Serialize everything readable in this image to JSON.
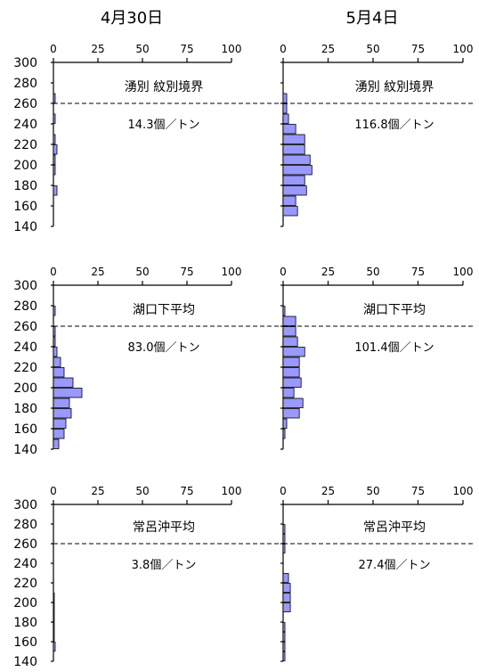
{
  "column_titles": [
    "4月30日",
    "5月4日"
  ],
  "chart_data": [
    {
      "type": "bar",
      "orientation": "horizontal",
      "date": "4月30日",
      "site": "湧別 紋別境界",
      "density_label": "14.3個／トン",
      "xlim": [
        0,
        100
      ],
      "x_ticks": [
        "0",
        "25",
        "50",
        "75",
        "100"
      ],
      "ylim": [
        140,
        300
      ],
      "y_ticks": [
        "300",
        "280",
        "260",
        "240",
        "220",
        "200",
        "180",
        "160",
        "140"
      ],
      "reference_line_y": 260,
      "categories": [
        275,
        265,
        255,
        245,
        235,
        225,
        215,
        205,
        195,
        185,
        175,
        165,
        155,
        145
      ],
      "values": [
        0,
        1,
        0,
        1,
        0,
        1,
        2,
        1,
        1,
        0,
        2,
        0,
        0,
        0
      ]
    },
    {
      "type": "bar",
      "orientation": "horizontal",
      "date": "5月4日",
      "site": "湧別 紋別境界",
      "density_label": "116.8個／トン",
      "xlim": [
        0,
        100
      ],
      "x_ticks": [
        "0",
        "25",
        "50",
        "75",
        "100"
      ],
      "ylim": [
        140,
        300
      ],
      "y_ticks": [],
      "reference_line_y": 260,
      "categories": [
        275,
        265,
        255,
        245,
        235,
        225,
        215,
        205,
        195,
        185,
        175,
        165,
        155,
        145
      ],
      "values": [
        0,
        2,
        2,
        3,
        7,
        12,
        12,
        15,
        16,
        12,
        13,
        7,
        8,
        0
      ]
    },
    {
      "type": "bar",
      "orientation": "horizontal",
      "date": "4月30日",
      "site": "湖口下平均",
      "density_label": "83.0個／トン",
      "xlim": [
        0,
        100
      ],
      "x_ticks": [
        "0",
        "25",
        "50",
        "75",
        "100"
      ],
      "ylim": [
        140,
        300
      ],
      "y_ticks": [
        "300",
        "280",
        "260",
        "240",
        "220",
        "200",
        "180",
        "160",
        "140"
      ],
      "reference_line_y": 260,
      "categories": [
        275,
        265,
        255,
        245,
        235,
        225,
        215,
        205,
        195,
        185,
        175,
        165,
        155,
        145
      ],
      "values": [
        1,
        0,
        1,
        1,
        2,
        4,
        6,
        11,
        16,
        9,
        10,
        7,
        6,
        3
      ]
    },
    {
      "type": "bar",
      "orientation": "horizontal",
      "date": "5月4日",
      "site": "湖口下平均",
      "density_label": "101.4個／トン",
      "xlim": [
        0,
        100
      ],
      "x_ticks": [
        "0",
        "25",
        "50",
        "75",
        "100"
      ],
      "ylim": [
        140,
        300
      ],
      "y_ticks": [],
      "reference_line_y": 260,
      "categories": [
        275,
        265,
        255,
        245,
        235,
        225,
        215,
        205,
        195,
        185,
        175,
        165,
        155,
        145
      ],
      "values": [
        1,
        7,
        7,
        8,
        12,
        9,
        9,
        10,
        6,
        11,
        9,
        2,
        1,
        0
      ]
    },
    {
      "type": "bar",
      "orientation": "horizontal",
      "date": "4月30日",
      "site": "常呂沖平均",
      "density_label": "3.8個／トン",
      "xlim": [
        0,
        100
      ],
      "x_ticks": [
        "0",
        "25",
        "50",
        "75",
        "100"
      ],
      "ylim": [
        140,
        300
      ],
      "y_ticks": [
        "300",
        "280",
        "260",
        "240",
        "220",
        "200",
        "180",
        "160",
        "140"
      ],
      "reference_line_y": 260,
      "categories": [
        275,
        265,
        255,
        245,
        235,
        225,
        215,
        205,
        195,
        185,
        175,
        165,
        155,
        145
      ],
      "values": [
        0,
        0,
        0,
        0,
        0,
        0,
        0,
        0.5,
        0.5,
        0.5,
        0.5,
        0.5,
        1,
        0
      ]
    },
    {
      "type": "bar",
      "orientation": "horizontal",
      "date": "5月4日",
      "site": "常呂沖平均",
      "density_label": "27.4個／トン",
      "xlim": [
        0,
        100
      ],
      "x_ticks": [
        "0",
        "25",
        "50",
        "75",
        "100"
      ],
      "ylim": [
        140,
        300
      ],
      "y_ticks": [],
      "reference_line_y": 260,
      "categories": [
        275,
        265,
        255,
        245,
        235,
        225,
        215,
        205,
        195,
        185,
        175,
        165,
        155,
        145
      ],
      "values": [
        1,
        1,
        1,
        0,
        0,
        3,
        4,
        4,
        4,
        0,
        1,
        1,
        1,
        1
      ]
    }
  ],
  "colors": {
    "bar_fill": "#9999ff",
    "bar_stroke": "#000000",
    "axis": "#000000",
    "background": "#ffffff"
  }
}
